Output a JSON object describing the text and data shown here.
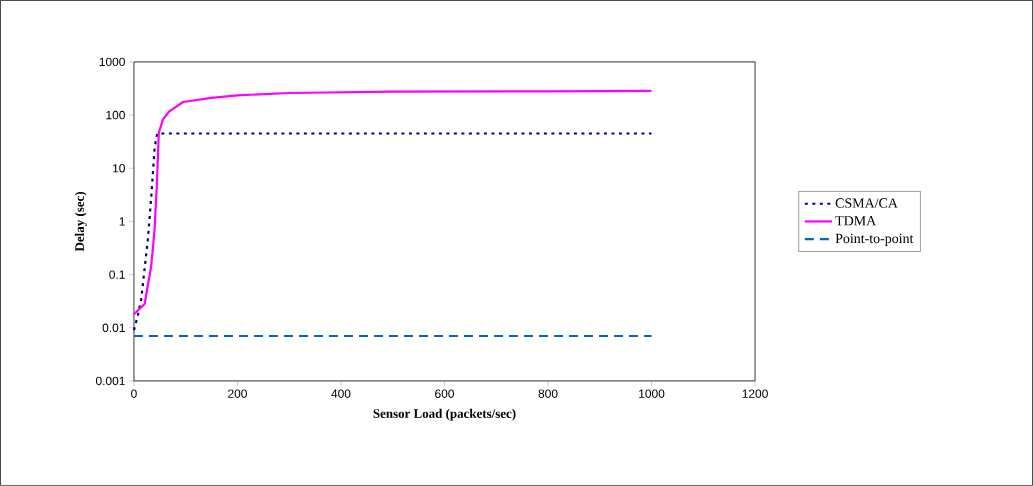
{
  "chart_data": {
    "type": "line",
    "xlabel": "Sensor Load (packets/sec)",
    "ylabel": "Delay (sec)",
    "log": "y",
    "xlim": [
      0,
      1200
    ],
    "xticks": [
      0,
      200,
      400,
      600,
      800,
      1000,
      1200
    ],
    "ylim": [
      0.001,
      1000
    ],
    "yticks": [
      0.001,
      0.01,
      0.1,
      1,
      10,
      100,
      1000
    ],
    "legend": "right",
    "series": [
      {
        "name": "CSMA/CA",
        "color": "#000080",
        "line_style": "dotted",
        "x": [
          0,
          7.5,
          14,
          27,
          33.6,
          40,
          45,
          1000
        ],
        "values": [
          0.009,
          0.017,
          0.034,
          0.47,
          3,
          25,
          45,
          45
        ]
      },
      {
        "name": "TDMA",
        "color": "#ff00ff",
        "line_style": "solid",
        "x": [
          0,
          20.7,
          33.6,
          40,
          44.4,
          48,
          56,
          69,
          95,
          150,
          200,
          300,
          500,
          800,
          1000
        ],
        "values": [
          0.018,
          0.028,
          0.15,
          0.72,
          5.2,
          46,
          83,
          119,
          176,
          210,
          235,
          260,
          275,
          280,
          285
        ]
      },
      {
        "name": "Point-to-point",
        "color": "#0066cc",
        "line_style": "dashed",
        "x": [
          0,
          1000
        ],
        "values": [
          0.007,
          0.007
        ]
      }
    ]
  }
}
